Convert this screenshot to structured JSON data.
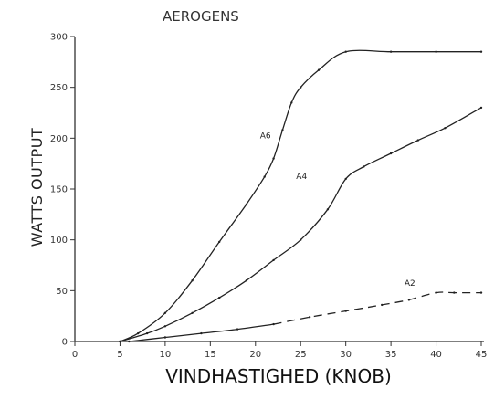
{
  "chart_data": {
    "type": "line",
    "title": "AEROGENS",
    "xlabel": "VINDHASTIGHED (KNOB)",
    "ylabel": "WATTS OUTPUT",
    "xlim": [
      0,
      45
    ],
    "ylim": [
      0,
      300
    ],
    "xticks": [
      0,
      5,
      10,
      15,
      20,
      25,
      30,
      35,
      40,
      45
    ],
    "yticks": [
      0,
      50,
      100,
      150,
      200,
      250,
      300
    ],
    "grid": false,
    "legend": "none",
    "series": [
      {
        "name": "A6",
        "style": "solid",
        "x": [
          5,
          7,
          10,
          13,
          16,
          19,
          21,
          22,
          23,
          24,
          25,
          27,
          30,
          35,
          40,
          45
        ],
        "y": [
          0,
          8,
          28,
          60,
          98,
          135,
          162,
          180,
          208,
          235,
          250,
          267,
          285,
          285,
          285,
          285
        ]
      },
      {
        "name": "A4",
        "style": "solid",
        "x": [
          5,
          8,
          10,
          13,
          16,
          19,
          22,
          25,
          28,
          30,
          32,
          35,
          38,
          41,
          45
        ],
        "y": [
          0,
          8,
          15,
          28,
          43,
          60,
          80,
          100,
          130,
          160,
          172,
          185,
          198,
          210,
          230
        ]
      },
      {
        "name": "A2",
        "style": "solid-then-dashed",
        "dash_from_x": 22,
        "x": [
          6,
          10,
          14,
          18,
          22,
          26,
          30,
          34,
          37,
          40,
          42,
          45
        ],
        "y": [
          0,
          4,
          8,
          12,
          17,
          24,
          30,
          36,
          41,
          48,
          48,
          48
        ]
      }
    ]
  }
}
